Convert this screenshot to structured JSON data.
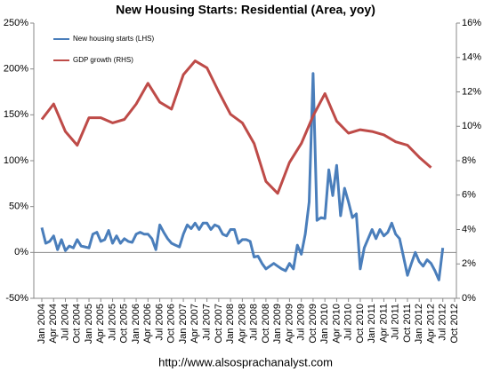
{
  "chart_data": {
    "type": "line",
    "title": "New Housing Starts: Residential (Area, yoy)",
    "source": "http://www.alsosprachanalyst.com",
    "categories": [
      "Jan 2004",
      null,
      null,
      "Apr 2004",
      null,
      null,
      "Jul 2004",
      null,
      null,
      "Oct 2004",
      null,
      null,
      "Jan 2005",
      null,
      null,
      "Apr 2005",
      null,
      null,
      "Jul 2005",
      null,
      null,
      "Oct 2005",
      null,
      null,
      "Jan 2006",
      null,
      null,
      "Apr 2006",
      null,
      null,
      "Jul 2006",
      null,
      null,
      "Oct 2006",
      null,
      null,
      "Jan 2007",
      null,
      null,
      "Apr 2007",
      null,
      null,
      "Jul 2007",
      null,
      null,
      "Oct 2007",
      null,
      null,
      "Jan 2008",
      null,
      null,
      "Apr 2008",
      null,
      null,
      "Jul 2008",
      null,
      null,
      "Oct 2008",
      null,
      null,
      "Jan 2009",
      null,
      null,
      "Apr 2009",
      null,
      null,
      "Jul 2009",
      null,
      null,
      "Oct 2009",
      null,
      null,
      "Jan 2010",
      null,
      null,
      "Apr 2010",
      null,
      null,
      "Jul 2010",
      null,
      null,
      "Oct 2010",
      null,
      null,
      "Jan 2011",
      null,
      null,
      "Apr 2011",
      null,
      null,
      "Jul 2011",
      null,
      null,
      "Oct 2011",
      null,
      null,
      "Jan 2012",
      null,
      null,
      "Apr 2012",
      null,
      null,
      "Jul 2012",
      null,
      null,
      "Oct 2012"
    ],
    "series": [
      {
        "name": "New housing starts (LHS)",
        "color": "#4a7ebb",
        "axis": "y",
        "values": [
          27,
          10,
          12,
          18,
          3,
          14,
          2,
          7,
          5,
          14,
          7,
          6,
          5,
          20,
          22,
          12,
          14,
          24,
          10,
          18,
          10,
          15,
          12,
          11,
          20,
          22,
          20,
          20,
          15,
          3,
          30,
          22,
          15,
          10,
          8,
          6,
          20,
          30,
          26,
          32,
          25,
          32,
          32,
          25,
          30,
          28,
          20,
          18,
          25,
          25,
          10,
          14,
          14,
          12,
          -5,
          -4,
          -12,
          -18,
          -15,
          -12,
          -15,
          -18,
          -20,
          -12,
          -18,
          8,
          -2,
          20,
          55,
          195,
          35,
          38,
          37,
          90,
          62,
          95,
          40,
          70,
          55,
          38,
          42,
          -18,
          5,
          15,
          25,
          15,
          25,
          18,
          22,
          32,
          20,
          15,
          -5,
          -25,
          -12,
          0,
          -10,
          -15,
          -8,
          -12,
          -20,
          -30,
          5,
          null,
          null,
          null
        ]
      },
      {
        "name": "GDP growth (RHS)",
        "color": "#be4b48",
        "axis": "y2",
        "x": [
          "Jan 2004",
          "Apr 2004",
          "Jul 2004",
          "Oct 2004",
          "Jan 2005",
          "Apr 2005",
          "Jul 2005",
          "Oct 2005",
          "Jan 2006",
          "Apr 2006",
          "Jul 2006",
          "Oct 2006",
          "Jan 2007",
          "Apr 2007",
          "Jul 2007",
          "Oct 2007",
          "Jan 2008",
          "Apr 2008",
          "Jul 2008",
          "Oct 2008",
          "Jan 2009",
          "Apr 2009",
          "Jul 2009",
          "Oct 2009",
          "Jan 2010",
          "Apr 2010",
          "Jul 2010",
          "Oct 2010",
          "Jan 2011",
          "Apr 2011",
          "Jul 2011",
          "Oct 2011",
          "Jan 2012",
          "Apr 2012"
        ],
        "values": [
          10.4,
          11.3,
          9.7,
          8.9,
          10.5,
          10.5,
          10.2,
          10.4,
          11.3,
          12.5,
          11.4,
          11.0,
          13.0,
          13.8,
          13.4,
          12.0,
          10.7,
          10.2,
          9.0,
          6.8,
          6.1,
          7.9,
          9.0,
          10.6,
          11.9,
          10.3,
          9.6,
          9.8,
          9.7,
          9.5,
          9.1,
          8.9,
          8.2,
          7.6
        ]
      }
    ],
    "ylim": [
      -50,
      250
    ],
    "yticks": [
      {
        "value": -50,
        "label": "-50%"
      },
      {
        "value": 0,
        "label": "0%"
      },
      {
        "value": 50,
        "label": "50%"
      },
      {
        "value": 100,
        "label": "100%"
      },
      {
        "value": 150,
        "label": "150%"
      },
      {
        "value": 200,
        "label": "200%"
      },
      {
        "value": 250,
        "label": "250%"
      }
    ],
    "y2lim": [
      0,
      16
    ],
    "y2ticks": [
      {
        "value": 0,
        "label": "0%"
      },
      {
        "value": 2,
        "label": "2%"
      },
      {
        "value": 4,
        "label": "4%"
      },
      {
        "value": 6,
        "label": "6%"
      },
      {
        "value": 8,
        "label": "8%"
      },
      {
        "value": 10,
        "label": "10%"
      },
      {
        "value": 12,
        "label": "12%"
      },
      {
        "value": 14,
        "label": "14%"
      },
      {
        "value": 16,
        "label": "16%"
      }
    ],
    "legend": "upper left"
  }
}
